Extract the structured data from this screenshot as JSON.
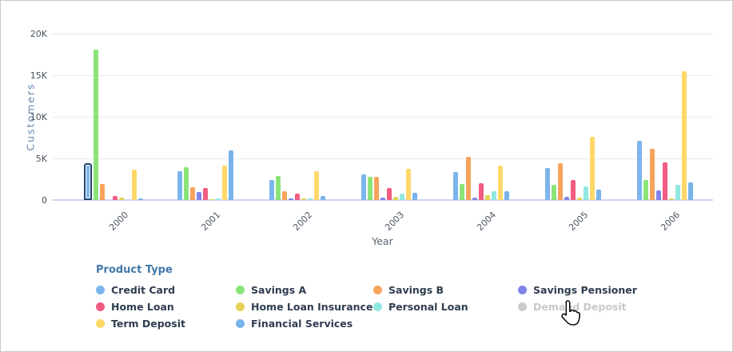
{
  "chart_data": {
    "type": "bar",
    "title": "",
    "xlabel": "Year",
    "ylabel": "Customers",
    "ylim": [
      0,
      20000
    ],
    "grid": true,
    "legend_position": "bottom",
    "y_ticks": [
      {
        "value": 0,
        "label": "0"
      },
      {
        "value": 5000,
        "label": "5K"
      },
      {
        "value": 10000,
        "label": "10K"
      },
      {
        "value": 15000,
        "label": "15K"
      },
      {
        "value": 20000,
        "label": "20K"
      }
    ],
    "categories": [
      "2000",
      "2001",
      "2002",
      "2003",
      "2004",
      "2005",
      "2006"
    ],
    "series": [
      {
        "name": "Credit Card",
        "color": "#7CB5EC",
        "values": [
          4400,
          3500,
          2450,
          3100,
          3400,
          3850,
          7150
        ]
      },
      {
        "name": "Savings A",
        "color": "#8AE478",
        "values": [
          18100,
          3900,
          2850,
          2750,
          1950,
          1850,
          2450
        ]
      },
      {
        "name": "Savings B",
        "color": "#F7A35C",
        "values": [
          1950,
          1550,
          1050,
          2750,
          5150,
          4400,
          6150
        ]
      },
      {
        "name": "Savings Pensioner",
        "color": "#8085E9",
        "values": [
          0,
          1000,
          150,
          300,
          300,
          350,
          1200
        ]
      },
      {
        "name": "Home Loan",
        "color": "#F15C80",
        "values": [
          450,
          1400,
          800,
          1400,
          2050,
          2400,
          4550
        ]
      },
      {
        "name": "Home Loan Insurance",
        "color": "#E4D354",
        "values": [
          250,
          100,
          200,
          400,
          550,
          300,
          150
        ]
      },
      {
        "name": "Personal Loan",
        "color": "#91E8E1",
        "values": [
          0,
          200,
          200,
          750,
          1050,
          1600,
          1850
        ]
      },
      {
        "name": "Term Deposit",
        "color": "#FFD869",
        "values": [
          3700,
          4100,
          3450,
          3750,
          4150,
          7600,
          15500
        ]
      },
      {
        "name": "Financial Services",
        "color": "#79B3EA",
        "values": [
          150,
          6000,
          500,
          850,
          1050,
          1250,
          2100
        ]
      }
    ],
    "highlight": {
      "category": "2000",
      "series": "Credit Card",
      "border_color": "#24466E"
    }
  },
  "axes": {
    "x_title": "Year",
    "y_title": "Customers"
  },
  "legend": {
    "title": "Product Type",
    "items": [
      {
        "label": "Credit Card",
        "color": "#7CB5EC",
        "disabled": false
      },
      {
        "label": "Savings A",
        "color": "#8AE478",
        "disabled": false
      },
      {
        "label": "Savings B",
        "color": "#F7A35C",
        "disabled": false
      },
      {
        "label": "Savings Pensioner",
        "color": "#8085E9",
        "disabled": false
      },
      {
        "label": "Home Loan",
        "color": "#F15C80",
        "disabled": false
      },
      {
        "label": "Home Loan Insurance",
        "color": "#E4D354",
        "disabled": false
      },
      {
        "label": "Personal Loan",
        "color": "#91E8E1",
        "disabled": false
      },
      {
        "label": "Demand Deposit",
        "color": "#CBCBCB",
        "disabled": true
      },
      {
        "label": "Term Deposit",
        "color": "#FFD869",
        "disabled": false
      },
      {
        "label": "Financial Services",
        "color": "#79B3EA",
        "disabled": false
      }
    ]
  },
  "cursor": {
    "icon": "hand-pointer-icon",
    "over": "Demand Deposit"
  }
}
